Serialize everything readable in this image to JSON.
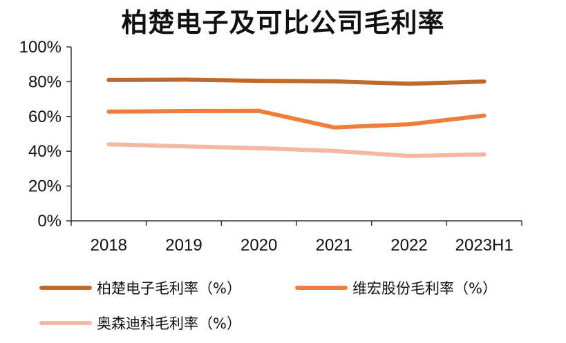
{
  "chart_data": {
    "type": "line",
    "title": "柏楚电子及可比公司毛利率",
    "categories": [
      "2018",
      "2019",
      "2020",
      "2021",
      "2022",
      "2023H1"
    ],
    "yticks": [
      "0%",
      "20%",
      "40%",
      "60%",
      "80%",
      "100%"
    ],
    "ylim": [
      0,
      100
    ],
    "grid": false,
    "legend_position": "bottom",
    "series": [
      {
        "name": "柏楚电子毛利率（%）",
        "color": "#C0692C",
        "values": [
          81,
          81.2,
          80.5,
          80.2,
          78.8,
          80.1
        ]
      },
      {
        "name": "维宏股份毛利率（%）",
        "color": "#EE7E3A",
        "values": [
          62.8,
          63.1,
          63.2,
          53.7,
          55.5,
          60.5
        ]
      },
      {
        "name": "奥森迪科毛利率（%）",
        "color": "#F4B7A1",
        "values": [
          44,
          42.8,
          41.8,
          40.2,
          37.3,
          38.2
        ]
      }
    ]
  }
}
